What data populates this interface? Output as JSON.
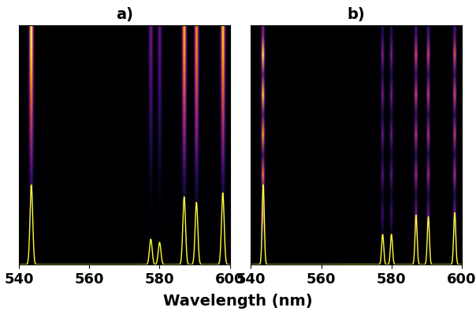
{
  "x_label": "Wavelength (nm)",
  "chart_data": [
    {
      "type": "spectral_image",
      "title": "a)",
      "xlim": [
        540,
        600
      ],
      "xticks": [
        540,
        560,
        580,
        600
      ],
      "ylim": [
        0,
        3
      ],
      "tick_labels": "x",
      "color": "#ffff33",
      "lines": {
        "wavelength": [
          543.5,
          577.5,
          580.0,
          587.0,
          590.5,
          598.0
        ],
        "intensity": [
          1.0,
          0.32,
          0.28,
          0.85,
          0.78,
          0.9
        ]
      },
      "fwhm": 0.9,
      "streak_profile": [
        0.0,
        0.0,
        0.05,
        0.12,
        0.22,
        0.35,
        0.48,
        0.6,
        0.72,
        0.85,
        0.95,
        1.0
      ]
    },
    {
      "type": "spectral_image",
      "title": "b)",
      "xlim": [
        540,
        600
      ],
      "xticks": [
        540,
        560,
        580,
        600
      ],
      "ylim": [
        0,
        3
      ],
      "tick_labels": "x",
      "color": "#ffff33",
      "lines": {
        "wavelength": [
          543.5,
          577.5,
          580.0,
          587.0,
          590.5,
          598.0
        ],
        "intensity": [
          1.0,
          0.38,
          0.38,
          0.62,
          0.6,
          0.65
        ]
      },
      "fwhm": 0.7,
      "streak_profile": [
        0.0,
        0.15,
        0.55,
        0.2,
        0.75,
        0.25,
        0.85,
        0.3,
        0.95,
        0.35,
        1.0,
        0.4
      ]
    }
  ]
}
